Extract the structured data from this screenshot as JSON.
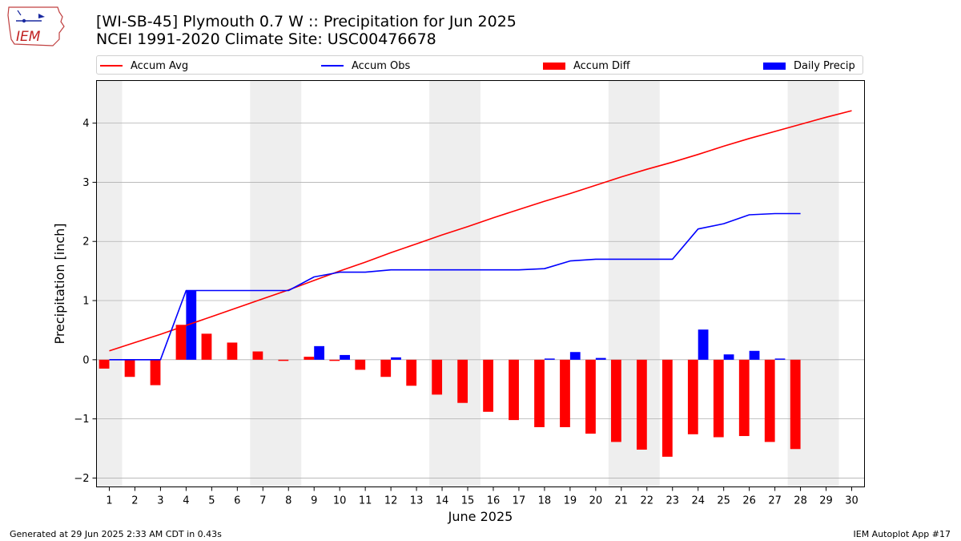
{
  "header": {
    "title_line1": "[WI-SB-45] Plymouth 0.7 W :: Precipitation for Jun 2025",
    "title_line2": "NCEI 1991-2020 Climate Site: USC00476678"
  },
  "logo": {
    "text": "IEM"
  },
  "legend": {
    "items": [
      {
        "label": "Accum Avg",
        "color": "#ff0000",
        "kind": "line"
      },
      {
        "label": "Accum Obs",
        "color": "#0000ff",
        "kind": "line"
      },
      {
        "label": "Accum Diff",
        "color": "#ff0000",
        "kind": "bar"
      },
      {
        "label": "Daily Precip",
        "color": "#0000ff",
        "kind": "bar"
      }
    ]
  },
  "footer": {
    "left": "Generated at 29 Jun 2025 2:33 AM CDT in 0.43s",
    "right": "IEM Autoplot App #17"
  },
  "chart_data": {
    "type": "bar",
    "title": "[WI-SB-45] Plymouth 0.7 W :: Precipitation for Jun 2025",
    "subtitle": "NCEI 1991-2020 Climate Site: USC00476678",
    "xlabel": "June 2025",
    "ylabel": "Precipitation [inch]",
    "xlim": [
      0.5,
      30.5
    ],
    "ylim": [
      -2.15,
      4.72
    ],
    "yticks": [
      -2,
      -1,
      0,
      1,
      2,
      3,
      4
    ],
    "ytick_labels": [
      "−2",
      "−1",
      "0",
      "1",
      "2",
      "3",
      "4"
    ],
    "grid": "y",
    "legend_position": "top",
    "weekend_shading": [
      [
        0.5,
        1.5
      ],
      [
        6.5,
        8.5
      ],
      [
        13.5,
        15.5
      ],
      [
        20.5,
        22.5
      ],
      [
        27.5,
        29.5
      ]
    ],
    "colors": {
      "avg": "#ff0000",
      "obs": "#0000ff",
      "diff": "#ff0000",
      "daily": "#0000ff",
      "shade": "#eeeeee",
      "grid": "#b0b0b0"
    },
    "days": [
      1,
      2,
      3,
      4,
      5,
      6,
      7,
      8,
      9,
      10,
      11,
      12,
      13,
      14,
      15,
      16,
      17,
      18,
      19,
      20,
      21,
      22,
      23,
      24,
      25,
      26,
      27,
      28,
      29,
      30
    ],
    "series": [
      {
        "name": "Accum Avg",
        "kind": "line",
        "x": [
          1,
          2,
          3,
          4,
          5,
          6,
          7,
          8,
          9,
          10,
          11,
          12,
          13,
          14,
          15,
          16,
          17,
          18,
          19,
          20,
          21,
          22,
          23,
          24,
          25,
          26,
          27,
          28,
          29,
          30
        ],
        "values": [
          0.15,
          0.29,
          0.43,
          0.58,
          0.73,
          0.88,
          1.03,
          1.18,
          1.34,
          1.5,
          1.65,
          1.81,
          1.96,
          2.11,
          2.25,
          2.4,
          2.54,
          2.68,
          2.81,
          2.95,
          3.09,
          3.22,
          3.34,
          3.47,
          3.61,
          3.74,
          3.86,
          3.98,
          4.1,
          4.21
        ]
      },
      {
        "name": "Accum Obs",
        "kind": "line",
        "x": [
          1,
          2,
          3,
          4,
          5,
          6,
          7,
          8,
          9,
          10,
          11,
          12,
          13,
          14,
          15,
          16,
          17,
          18,
          19,
          20,
          21,
          22,
          23,
          24,
          25,
          26,
          27,
          28
        ],
        "values": [
          0.0,
          0.0,
          0.0,
          1.17,
          1.17,
          1.17,
          1.17,
          1.17,
          1.4,
          1.48,
          1.48,
          1.52,
          1.52,
          1.52,
          1.52,
          1.52,
          1.52,
          1.54,
          1.67,
          1.7,
          1.7,
          1.7,
          1.7,
          2.21,
          2.3,
          2.45,
          2.47,
          2.47
        ]
      },
      {
        "name": "Accum Diff",
        "kind": "bar",
        "x": [
          1,
          2,
          3,
          4,
          5,
          6,
          7,
          8,
          9,
          10,
          11,
          12,
          13,
          14,
          15,
          16,
          17,
          18,
          19,
          20,
          21,
          22,
          23,
          24,
          25,
          26,
          27,
          28
        ],
        "values": [
          -0.15,
          -0.29,
          -0.43,
          0.59,
          0.44,
          0.29,
          0.14,
          -0.02,
          0.05,
          -0.02,
          -0.17,
          -0.29,
          -0.44,
          -0.59,
          -0.73,
          -0.88,
          -1.02,
          -1.14,
          -1.14,
          -1.25,
          -1.39,
          -1.52,
          -1.64,
          -1.26,
          -1.31,
          -1.29,
          -1.39,
          -1.51
        ]
      },
      {
        "name": "Daily Precip",
        "kind": "bar",
        "x": [
          1,
          2,
          3,
          4,
          5,
          6,
          7,
          8,
          9,
          10,
          11,
          12,
          13,
          14,
          15,
          16,
          17,
          18,
          19,
          20,
          21,
          22,
          23,
          24,
          25,
          26,
          27,
          28
        ],
        "values": [
          0,
          0,
          0,
          1.17,
          0,
          0,
          0,
          0,
          0.23,
          0.08,
          0,
          0.04,
          0,
          0,
          0,
          0,
          0,
          0.02,
          0.13,
          0.03,
          0,
          0,
          0,
          0.51,
          0.09,
          0.15,
          0.02,
          0
        ]
      }
    ]
  }
}
